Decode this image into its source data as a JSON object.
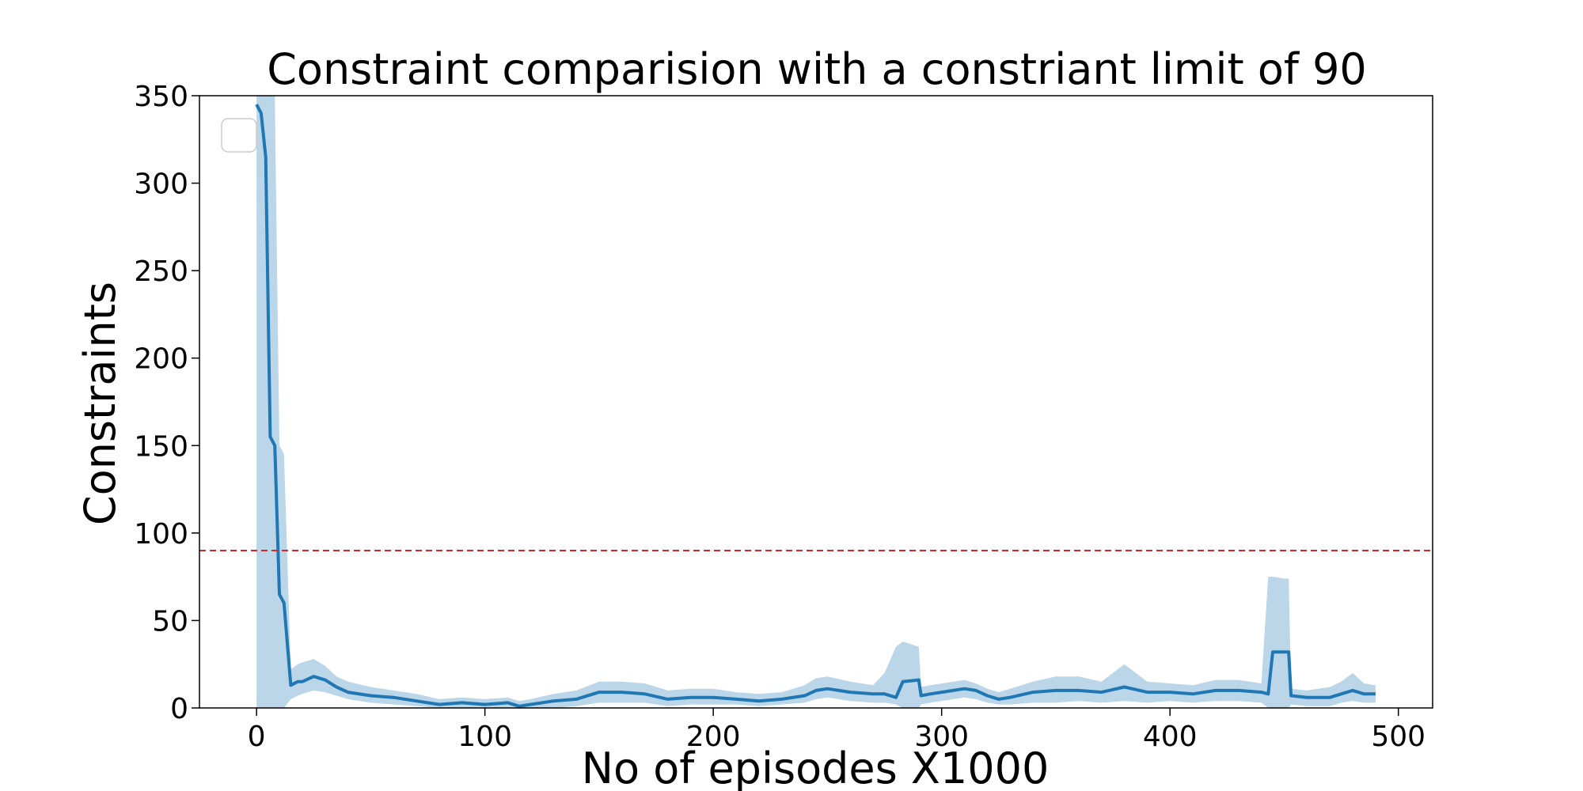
{
  "chart_data": {
    "type": "line",
    "title": "Constraint comparision with a constriant limit of 90",
    "xlabel": "No of episodes X1000",
    "ylabel": "Constraints",
    "xlim": [
      -25,
      515
    ],
    "ylim": [
      0,
      350
    ],
    "xticks": [
      0,
      100,
      200,
      300,
      400,
      500
    ],
    "yticks": [
      0,
      50,
      100,
      150,
      200,
      250,
      300,
      350
    ],
    "grid": false,
    "legend": "upper-left, empty",
    "constraint_limit": 90,
    "colors": {
      "line": "#1f77b4",
      "band": "#1f77b4",
      "limit": "#d62728"
    },
    "series": [
      {
        "x": [
          0,
          2,
          4,
          6,
          8,
          10,
          12,
          15,
          18,
          20,
          25,
          30,
          35,
          40,
          50,
          60,
          70,
          80,
          90,
          100,
          110,
          115,
          120,
          130,
          140,
          150,
          160,
          170,
          180,
          190,
          200,
          210,
          220,
          230,
          240,
          245,
          250,
          260,
          270,
          275,
          280,
          283,
          290,
          291,
          295,
          300,
          310,
          315,
          320,
          325,
          330,
          340,
          350,
          360,
          370,
          380,
          390,
          400,
          410,
          420,
          430,
          440,
          443,
          445,
          450,
          452,
          453,
          460,
          470,
          475,
          480,
          485,
          490
        ],
        "y": [
          345,
          340,
          315,
          155,
          150,
          65,
          60,
          13,
          15,
          15,
          18,
          16,
          12,
          9,
          7,
          6,
          4,
          2,
          3,
          2,
          3,
          1,
          2,
          4,
          5,
          9,
          9,
          8,
          5,
          6,
          6,
          5,
          4,
          5,
          7,
          10,
          11,
          9,
          8,
          8,
          6,
          15,
          16,
          7,
          8,
          9,
          11,
          10,
          7,
          5,
          6,
          9,
          10,
          10,
          9,
          12,
          9,
          9,
          8,
          10,
          10,
          9,
          8,
          32,
          32,
          32,
          7,
          6,
          6,
          8,
          10,
          8,
          8
        ],
        "lower": [
          0,
          0,
          0,
          0,
          0,
          0,
          0,
          5,
          7,
          8,
          10,
          9,
          7,
          5,
          3,
          2,
          1,
          0,
          0,
          0,
          0,
          0,
          0,
          0,
          1,
          3,
          3,
          3,
          1,
          2,
          2,
          2,
          1,
          2,
          3,
          5,
          6,
          4,
          3,
          3,
          2,
          0,
          0,
          2,
          3,
          4,
          6,
          5,
          3,
          2,
          2,
          3,
          3,
          4,
          3,
          4,
          3,
          4,
          3,
          4,
          4,
          3,
          0,
          0,
          0,
          0,
          2,
          1,
          1,
          3,
          4,
          3,
          3
        ],
        "upper": [
          350,
          350,
          350,
          350,
          350,
          150,
          145,
          22,
          25,
          26,
          28,
          24,
          18,
          15,
          12,
          10,
          8,
          5,
          6,
          5,
          6,
          4,
          5,
          8,
          10,
          15,
          15,
          14,
          10,
          11,
          11,
          9,
          8,
          9,
          13,
          17,
          18,
          15,
          13,
          20,
          35,
          38,
          35,
          12,
          13,
          14,
          16,
          14,
          11,
          9,
          11,
          15,
          18,
          18,
          15,
          25,
          15,
          14,
          13,
          16,
          16,
          14,
          75,
          75,
          74,
          74,
          11,
          10,
          12,
          15,
          20,
          14,
          13
        ]
      }
    ]
  }
}
